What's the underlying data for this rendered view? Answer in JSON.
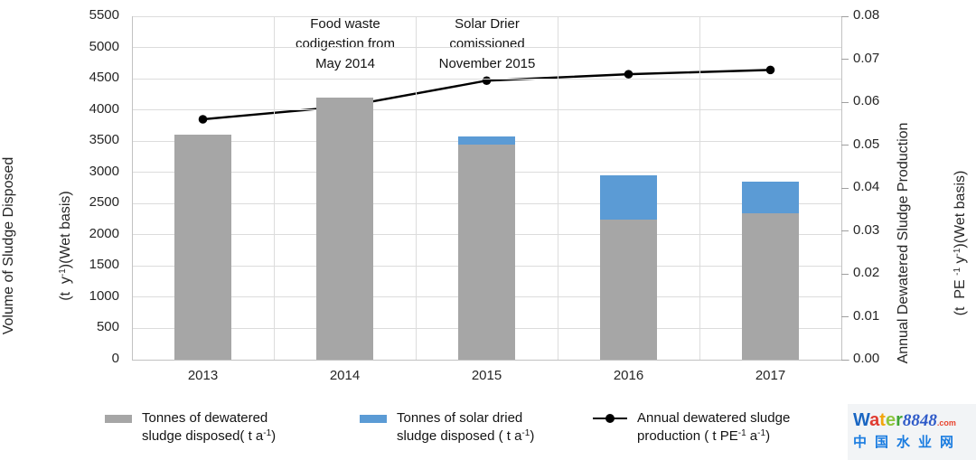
{
  "axes": {
    "left": {
      "title_line1": "Volume of Sludge Disposed",
      "line2_pre": "(t  y",
      "line2_sup": "-1",
      "line2_post": ")(Wet basis)"
    },
    "right": {
      "title_line1": "Annual Dewatered Sludge Production",
      "line2_pre": "(t  PE ",
      "line2_sup1": "-1",
      "line2_mid": " y",
      "line2_sup2": "-1",
      "line2_post": ")(Wet basis)"
    }
  },
  "annotations": [
    {
      "text": "Food waste\ncodigestion from\nMay 2014"
    },
    {
      "text": "Solar Drier\ncomissioned\nNovember 2015"
    }
  ],
  "legend": {
    "items": [
      {
        "line1": "Tonnes of dewatered",
        "line2_pre": "sludge disposed( t a",
        "line2_sup": "-1",
        "line2_post": ")"
      },
      {
        "line1": "Tonnes of solar dried",
        "line2_pre": "sludge disposed ( t a",
        "line2_sup": "-1",
        "line2_post": ")"
      },
      {
        "line1": "Annual dewatered sludge",
        "line2_pre": "production ( t PE",
        "line2_sup1": "-1",
        "line2_mid": " a",
        "line2_sup2": "-1",
        "line2_post": ")"
      }
    ]
  },
  "watermark": {
    "brand_letters": [
      {
        "ch": "W",
        "color": "#1a66c2"
      },
      {
        "ch": "a",
        "color": "#e03c31"
      },
      {
        "ch": "t",
        "color": "#f2a50c"
      },
      {
        "ch": "e",
        "color": "#8cc63e"
      },
      {
        "ch": "r",
        "color": "#3fa535"
      }
    ],
    "brand_number": "8848",
    "brand_number_color": "#2d59c8",
    "brand_suffix": ".com",
    "brand_suffix_color": "#e8442e",
    "subtitle": "中国水业网",
    "subtitle_color": "#1a7ce0"
  },
  "chart_data": {
    "type": "bar",
    "subtype": "stacked-bar-with-line-combo",
    "categories": [
      "2013",
      "2014",
      "2015",
      "2016",
      "2017"
    ],
    "series": [
      {
        "name": "Tonnes of dewatered sludge disposed( t a-1)",
        "kind": "bar",
        "stack": "disposal",
        "axis": "left",
        "color": "#a6a6a6",
        "values": [
          3600,
          4200,
          3450,
          2250,
          2350
        ]
      },
      {
        "name": "Tonnes of solar dried sludge disposed ( t a-1)",
        "kind": "bar",
        "stack": "disposal",
        "axis": "left",
        "color": "#5b9bd5",
        "values": [
          0,
          0,
          125,
          700,
          500
        ]
      },
      {
        "name": "Annual dewatered sludge production ( t PE-1 a-1)",
        "kind": "line",
        "axis": "right",
        "color": "#000000",
        "marker": "circle",
        "values": [
          0.056,
          0.059,
          0.065,
          0.0665,
          0.0675
        ]
      }
    ],
    "left_axis": {
      "label": "Volume of Sludge Disposed (t y-1)(Wet basis)",
      "min": 0,
      "max": 5500,
      "step": 500,
      "ticks": [
        "0",
        "500",
        "1000",
        "1500",
        "2000",
        "2500",
        "3000",
        "3500",
        "4000",
        "4500",
        "5000",
        "5500"
      ]
    },
    "right_axis": {
      "label": "Annual Dewatered Sludge Production (t PE-1 y-1)(Wet basis)",
      "min": 0,
      "max": 0.08,
      "step": 0.01,
      "ticks": [
        "0.00",
        "0.01",
        "0.02",
        "0.03",
        "0.04",
        "0.05",
        "0.06",
        "0.07",
        "0.08"
      ]
    },
    "grid": {
      "horizontal": true,
      "vertical_category_separators": true
    },
    "legend_position": "bottom",
    "annotations": [
      "Food waste codigestion from May 2014",
      "Solar Drier comissioned November 2015"
    ]
  }
}
